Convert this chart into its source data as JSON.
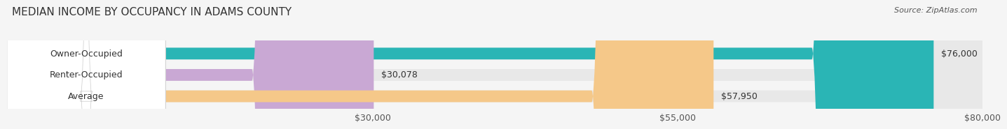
{
  "title": "MEDIAN INCOME BY OCCUPANCY IN ADAMS COUNTY",
  "source": "Source: ZipAtlas.com",
  "categories": [
    "Owner-Occupied",
    "Renter-Occupied",
    "Average"
  ],
  "values": [
    76000,
    30078,
    57950
  ],
  "bar_colors": [
    "#2ab5b5",
    "#c9a8d4",
    "#f5c889"
  ],
  "bar_labels": [
    "$76,000",
    "$30,078",
    "$57,950"
  ],
  "bar_bg_color": "#e8e8e8",
  "xlim": [
    0,
    80000
  ],
  "xticks": [
    30000,
    55000,
    80000
  ],
  "xticklabels": [
    "$30,000",
    "$55,000",
    "$80,000"
  ],
  "title_fontsize": 11,
  "source_fontsize": 8,
  "label_fontsize": 9,
  "bar_height": 0.55,
  "background_color": "#f5f5f5"
}
